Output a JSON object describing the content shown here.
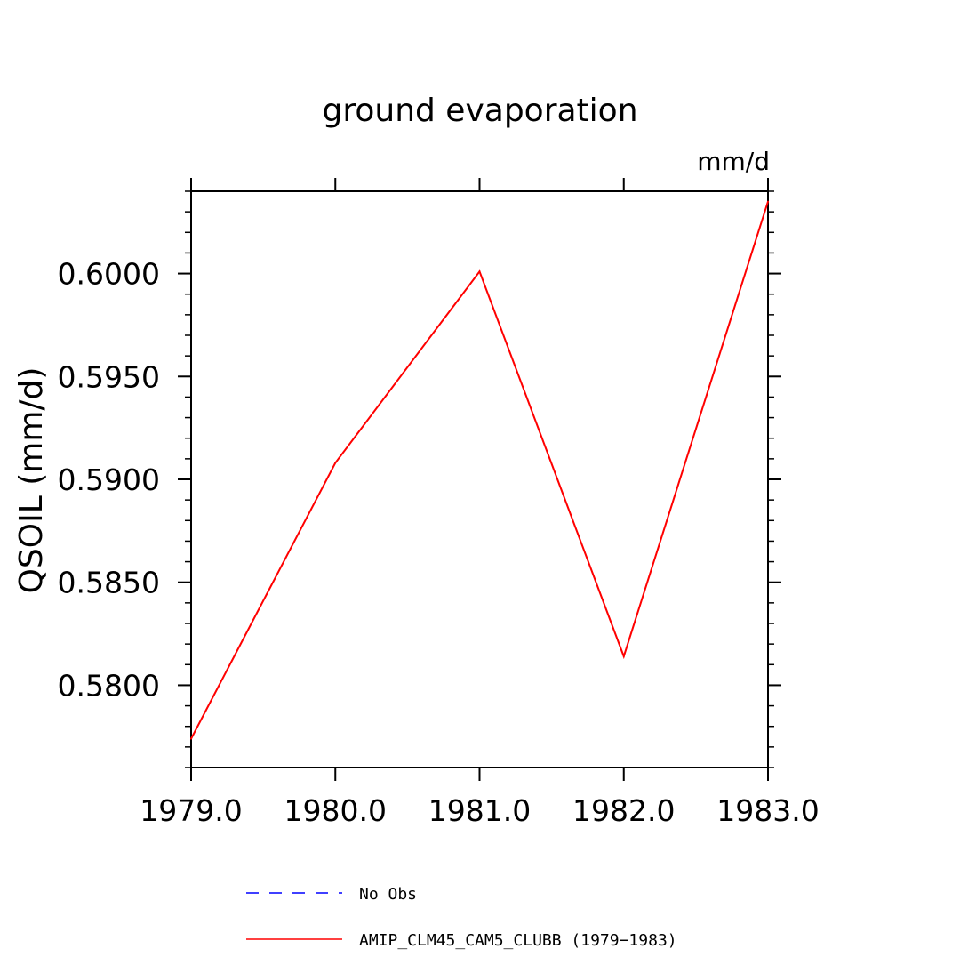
{
  "chart_data": {
    "type": "line",
    "title": "ground evaporation",
    "units_label": "mm/d",
    "ylabel": "QSOIL  (mm/d)",
    "xlabel": "",
    "x": [
      1979.0,
      1980.0,
      1981.0,
      1982.0,
      1983.0
    ],
    "xticks": [
      1979.0,
      1980.0,
      1981.0,
      1982.0,
      1983.0
    ],
    "xtick_labels": [
      "1979.0",
      "1980.0",
      "1981.0",
      "1982.0",
      "1983.0"
    ],
    "xlim": [
      1979.0,
      1983.0
    ],
    "ylim": [
      0.576,
      0.604
    ],
    "yticks": [
      0.58,
      0.585,
      0.59,
      0.595,
      0.6
    ],
    "ytick_labels": [
      "0.5800",
      "0.5850",
      "0.5900",
      "0.5950",
      "0.6000"
    ],
    "grid": false,
    "series": [
      {
        "name": "AMIP_CLM45_CAM5_CLUBB (1979-1983)",
        "values": [
          0.5774,
          0.5908,
          0.6001,
          0.5814,
          0.6035
        ],
        "color": "#ff0000",
        "style": "solid"
      }
    ],
    "legend": {
      "placement": "bottom",
      "entries": [
        {
          "label": "No Obs",
          "color": "#0000ff",
          "style": "dashed"
        },
        {
          "label": "AMIP_CLM45_CAM5_CLUBB (1979−1983)",
          "color": "#ff0000",
          "style": "solid"
        }
      ]
    }
  }
}
